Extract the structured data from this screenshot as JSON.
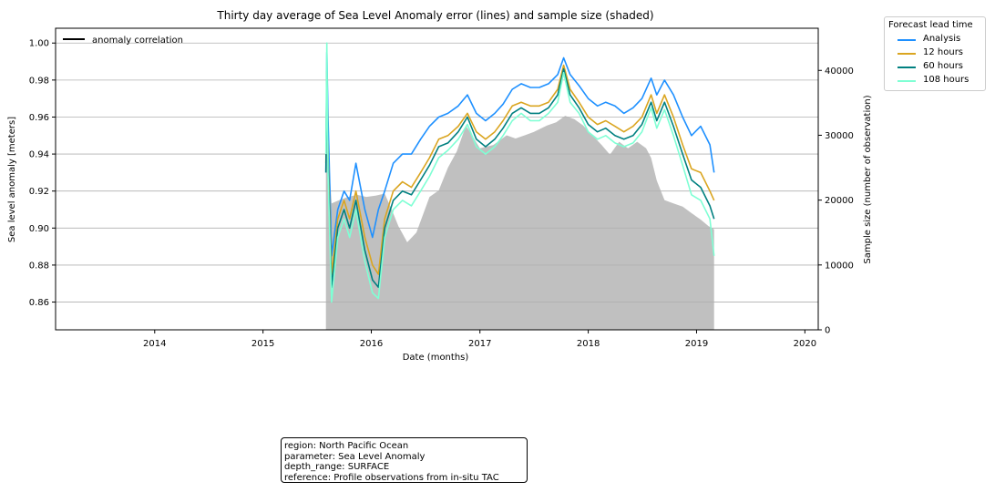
{
  "chart_data": {
    "type": "line",
    "title": "Thirty day average of Sea Level Anomaly error (lines) and sample size (shaded)",
    "xlabel": "Date (months)",
    "ylabel": "Sea level anomaly [meters]",
    "y2label": "Sample size (number of observation)",
    "xlim": [
      "2013-02-01",
      "2020-02-15"
    ],
    "ylim": [
      0.845,
      1.008
    ],
    "y2lim": [
      0,
      46500
    ],
    "x_ticks": [
      "2014",
      "2015",
      "2016",
      "2017",
      "2018",
      "2019",
      "2020"
    ],
    "y_ticks": [
      0.86,
      0.88,
      0.9,
      0.92,
      0.94,
      0.96,
      0.98,
      1.0
    ],
    "y_tick_labels": [
      "0.86",
      "0.88",
      "0.90",
      "0.92",
      "0.94",
      "0.96",
      "0.98",
      "1.00"
    ],
    "y2_ticks": [
      0,
      10000,
      20000,
      30000,
      40000
    ],
    "y2_tick_labels": [
      "0",
      "10000",
      "20000",
      "30000",
      "40000"
    ],
    "grid": "horizontal",
    "inner_legend": {
      "label": "anomaly correlation",
      "color": "#000000",
      "placement": "top-left"
    },
    "legend": {
      "title": "Forecast lead time",
      "placement": "outside-top-right"
    },
    "sample_size": {
      "color": "#c0c0c0",
      "points": [
        [
          "2015-08-01",
          24000
        ],
        [
          "2015-08-05",
          44500
        ],
        [
          "2015-08-10",
          27000
        ],
        [
          "2015-08-20",
          19500
        ],
        [
          "2015-09-15",
          20000
        ],
        [
          "2015-10-15",
          20500
        ],
        [
          "2015-11-15",
          20800
        ],
        [
          "2015-12-15",
          20500
        ],
        [
          "2016-01-15",
          20700
        ],
        [
          "2016-02-15",
          21000
        ],
        [
          "2016-03-10",
          18500
        ],
        [
          "2016-04-01",
          16000
        ],
        [
          "2016-05-01",
          13500
        ],
        [
          "2016-06-01",
          15000
        ],
        [
          "2016-07-15",
          20500
        ],
        [
          "2016-08-15",
          21500
        ],
        [
          "2016-09-15",
          25000
        ],
        [
          "2016-10-15",
          27500
        ],
        [
          "2016-11-15",
          31500
        ],
        [
          "2017-01-01",
          28000
        ],
        [
          "2017-02-15",
          28500
        ],
        [
          "2017-04-01",
          30000
        ],
        [
          "2017-05-01",
          29500
        ],
        [
          "2017-06-01",
          30000
        ],
        [
          "2017-07-01",
          30500
        ],
        [
          "2017-08-15",
          31500
        ],
        [
          "2017-09-15",
          32000
        ],
        [
          "2017-10-15",
          33000
        ],
        [
          "2017-11-15",
          32500
        ],
        [
          "2017-12-15",
          31500
        ],
        [
          "2018-01-15",
          30000
        ],
        [
          "2018-02-15",
          28500
        ],
        [
          "2018-03-15",
          27000
        ],
        [
          "2018-04-15",
          29000
        ],
        [
          "2018-05-15",
          28000
        ],
        [
          "2018-06-15",
          29000
        ],
        [
          "2018-07-15",
          28000
        ],
        [
          "2018-08-01",
          26500
        ],
        [
          "2018-08-20",
          23000
        ],
        [
          "2018-09-15",
          20000
        ],
        [
          "2018-10-15",
          19500
        ],
        [
          "2018-11-15",
          19000
        ],
        [
          "2018-12-15",
          18000
        ],
        [
          "2019-01-15",
          17000
        ],
        [
          "2019-02-10",
          16000
        ],
        [
          "2019-03-01",
          15500
        ]
      ]
    },
    "series": [
      {
        "name": "Analysis",
        "color": "#1e90ff",
        "points": [
          [
            "2015-08-01",
            0.93
          ],
          [
            "2015-08-04",
            0.995
          ],
          [
            "2015-08-08",
            0.96
          ],
          [
            "2015-08-20",
            0.885
          ],
          [
            "2015-09-10",
            0.91
          ],
          [
            "2015-10-01",
            0.92
          ],
          [
            "2015-10-20",
            0.915
          ],
          [
            "2015-11-10",
            0.935
          ],
          [
            "2015-12-10",
            0.91
          ],
          [
            "2016-01-05",
            0.895
          ],
          [
            "2016-01-25",
            0.91
          ],
          [
            "2016-02-15",
            0.92
          ],
          [
            "2016-03-15",
            0.935
          ],
          [
            "2016-04-15",
            0.94
          ],
          [
            "2016-05-15",
            0.94
          ],
          [
            "2016-06-15",
            0.948
          ],
          [
            "2016-07-15",
            0.955
          ],
          [
            "2016-08-15",
            0.96
          ],
          [
            "2016-09-15",
            0.962
          ],
          [
            "2016-10-20",
            0.966
          ],
          [
            "2016-11-20",
            0.972
          ],
          [
            "2016-12-20",
            0.962
          ],
          [
            "2017-01-20",
            0.958
          ],
          [
            "2017-02-20",
            0.962
          ],
          [
            "2017-03-20",
            0.967
          ],
          [
            "2017-04-20",
            0.975
          ],
          [
            "2017-05-20",
            0.978
          ],
          [
            "2017-06-20",
            0.976
          ],
          [
            "2017-07-20",
            0.976
          ],
          [
            "2017-08-20",
            0.978
          ],
          [
            "2017-09-20",
            0.983
          ],
          [
            "2017-10-10",
            0.992
          ],
          [
            "2017-11-01",
            0.983
          ],
          [
            "2017-12-01",
            0.977
          ],
          [
            "2018-01-01",
            0.97
          ],
          [
            "2018-02-01",
            0.966
          ],
          [
            "2018-03-01",
            0.968
          ],
          [
            "2018-04-01",
            0.966
          ],
          [
            "2018-05-01",
            0.962
          ],
          [
            "2018-06-01",
            0.965
          ],
          [
            "2018-07-01",
            0.97
          ],
          [
            "2018-08-01",
            0.981
          ],
          [
            "2018-08-20",
            0.972
          ],
          [
            "2018-09-15",
            0.98
          ],
          [
            "2018-10-15",
            0.972
          ],
          [
            "2018-11-15",
            0.96
          ],
          [
            "2018-12-15",
            0.95
          ],
          [
            "2019-01-15",
            0.955
          ],
          [
            "2019-02-15",
            0.945
          ],
          [
            "2019-03-01",
            0.93
          ]
        ]
      },
      {
        "name": "12 hours",
        "color": "#daa520",
        "points": [
          [
            "2015-08-01",
            0.935
          ],
          [
            "2015-08-04",
            0.985
          ],
          [
            "2015-08-08",
            0.94
          ],
          [
            "2015-08-20",
            0.875
          ],
          [
            "2015-09-10",
            0.905
          ],
          [
            "2015-10-01",
            0.915
          ],
          [
            "2015-10-20",
            0.905
          ],
          [
            "2015-11-10",
            0.92
          ],
          [
            "2015-12-10",
            0.895
          ],
          [
            "2016-01-05",
            0.88
          ],
          [
            "2016-01-25",
            0.875
          ],
          [
            "2016-02-15",
            0.905
          ],
          [
            "2016-03-15",
            0.92
          ],
          [
            "2016-04-15",
            0.925
          ],
          [
            "2016-05-15",
            0.922
          ],
          [
            "2016-06-15",
            0.93
          ],
          [
            "2016-07-15",
            0.938
          ],
          [
            "2016-08-15",
            0.948
          ],
          [
            "2016-09-15",
            0.95
          ],
          [
            "2016-10-20",
            0.955
          ],
          [
            "2016-11-20",
            0.962
          ],
          [
            "2016-12-20",
            0.952
          ],
          [
            "2017-01-20",
            0.948
          ],
          [
            "2017-02-20",
            0.952
          ],
          [
            "2017-03-20",
            0.958
          ],
          [
            "2017-04-20",
            0.966
          ],
          [
            "2017-05-20",
            0.968
          ],
          [
            "2017-06-20",
            0.966
          ],
          [
            "2017-07-20",
            0.966
          ],
          [
            "2017-08-20",
            0.968
          ],
          [
            "2017-09-20",
            0.975
          ],
          [
            "2017-10-10",
            0.988
          ],
          [
            "2017-11-01",
            0.975
          ],
          [
            "2017-12-01",
            0.968
          ],
          [
            "2018-01-01",
            0.96
          ],
          [
            "2018-02-01",
            0.956
          ],
          [
            "2018-03-01",
            0.958
          ],
          [
            "2018-04-01",
            0.955
          ],
          [
            "2018-05-01",
            0.952
          ],
          [
            "2018-06-01",
            0.955
          ],
          [
            "2018-07-01",
            0.96
          ],
          [
            "2018-08-01",
            0.972
          ],
          [
            "2018-08-20",
            0.962
          ],
          [
            "2018-09-15",
            0.972
          ],
          [
            "2018-10-15",
            0.96
          ],
          [
            "2018-11-15",
            0.945
          ],
          [
            "2018-12-15",
            0.932
          ],
          [
            "2019-01-15",
            0.93
          ],
          [
            "2019-02-15",
            0.92
          ],
          [
            "2019-03-01",
            0.915
          ]
        ]
      },
      {
        "name": "60 hours",
        "color": "#008080",
        "points": [
          [
            "2015-08-01",
            0.93
          ],
          [
            "2015-08-04",
            0.985
          ],
          [
            "2015-08-08",
            0.935
          ],
          [
            "2015-08-20",
            0.868
          ],
          [
            "2015-09-10",
            0.9
          ],
          [
            "2015-10-01",
            0.91
          ],
          [
            "2015-10-20",
            0.9
          ],
          [
            "2015-11-10",
            0.915
          ],
          [
            "2015-12-10",
            0.888
          ],
          [
            "2016-01-05",
            0.872
          ],
          [
            "2016-01-25",
            0.868
          ],
          [
            "2016-02-15",
            0.9
          ],
          [
            "2016-03-15",
            0.915
          ],
          [
            "2016-04-15",
            0.92
          ],
          [
            "2016-05-15",
            0.918
          ],
          [
            "2016-06-15",
            0.926
          ],
          [
            "2016-07-15",
            0.934
          ],
          [
            "2016-08-15",
            0.944
          ],
          [
            "2016-09-15",
            0.946
          ],
          [
            "2016-10-20",
            0.952
          ],
          [
            "2016-11-20",
            0.96
          ],
          [
            "2016-12-20",
            0.948
          ],
          [
            "2017-01-20",
            0.944
          ],
          [
            "2017-02-20",
            0.948
          ],
          [
            "2017-03-20",
            0.954
          ],
          [
            "2017-04-20",
            0.962
          ],
          [
            "2017-05-20",
            0.965
          ],
          [
            "2017-06-20",
            0.962
          ],
          [
            "2017-07-20",
            0.962
          ],
          [
            "2017-08-20",
            0.965
          ],
          [
            "2017-09-20",
            0.972
          ],
          [
            "2017-10-10",
            0.986
          ],
          [
            "2017-11-01",
            0.972
          ],
          [
            "2017-12-01",
            0.965
          ],
          [
            "2018-01-01",
            0.956
          ],
          [
            "2018-02-01",
            0.952
          ],
          [
            "2018-03-01",
            0.954
          ],
          [
            "2018-04-01",
            0.95
          ],
          [
            "2018-05-01",
            0.948
          ],
          [
            "2018-06-01",
            0.95
          ],
          [
            "2018-07-01",
            0.956
          ],
          [
            "2018-08-01",
            0.968
          ],
          [
            "2018-08-20",
            0.958
          ],
          [
            "2018-09-15",
            0.968
          ],
          [
            "2018-10-15",
            0.955
          ],
          [
            "2018-11-15",
            0.94
          ],
          [
            "2018-12-15",
            0.926
          ],
          [
            "2019-01-15",
            0.922
          ],
          [
            "2019-02-15",
            0.912
          ],
          [
            "2019-03-01",
            0.905
          ]
        ]
      },
      {
        "name": "108 hours",
        "color": "#7fffd4",
        "points": [
          [
            "2015-08-01",
            0.94
          ],
          [
            "2015-08-04",
            1.0
          ],
          [
            "2015-08-08",
            0.93
          ],
          [
            "2015-08-20",
            0.86
          ],
          [
            "2015-09-10",
            0.895
          ],
          [
            "2015-10-01",
            0.905
          ],
          [
            "2015-10-20",
            0.895
          ],
          [
            "2015-11-10",
            0.91
          ],
          [
            "2015-12-10",
            0.882
          ],
          [
            "2016-01-05",
            0.865
          ],
          [
            "2016-01-25",
            0.862
          ],
          [
            "2016-02-15",
            0.895
          ],
          [
            "2016-03-15",
            0.91
          ],
          [
            "2016-04-15",
            0.915
          ],
          [
            "2016-05-15",
            0.912
          ],
          [
            "2016-06-15",
            0.92
          ],
          [
            "2016-07-15",
            0.928
          ],
          [
            "2016-08-15",
            0.938
          ],
          [
            "2016-09-15",
            0.942
          ],
          [
            "2016-10-20",
            0.948
          ],
          [
            "2016-11-20",
            0.956
          ],
          [
            "2016-12-20",
            0.944
          ],
          [
            "2017-01-20",
            0.94
          ],
          [
            "2017-02-20",
            0.944
          ],
          [
            "2017-03-20",
            0.95
          ],
          [
            "2017-04-20",
            0.958
          ],
          [
            "2017-05-20",
            0.962
          ],
          [
            "2017-06-20",
            0.958
          ],
          [
            "2017-07-20",
            0.958
          ],
          [
            "2017-08-20",
            0.962
          ],
          [
            "2017-09-20",
            0.968
          ],
          [
            "2017-10-10",
            0.984
          ],
          [
            "2017-11-01",
            0.968
          ],
          [
            "2017-12-01",
            0.962
          ],
          [
            "2018-01-01",
            0.952
          ],
          [
            "2018-02-01",
            0.948
          ],
          [
            "2018-03-01",
            0.95
          ],
          [
            "2018-04-01",
            0.946
          ],
          [
            "2018-05-01",
            0.944
          ],
          [
            "2018-06-01",
            0.946
          ],
          [
            "2018-07-01",
            0.952
          ],
          [
            "2018-08-01",
            0.965
          ],
          [
            "2018-08-20",
            0.954
          ],
          [
            "2018-09-15",
            0.964
          ],
          [
            "2018-10-15",
            0.95
          ],
          [
            "2018-11-15",
            0.934
          ],
          [
            "2018-12-15",
            0.918
          ],
          [
            "2019-01-15",
            0.915
          ],
          [
            "2019-02-15",
            0.905
          ],
          [
            "2019-03-01",
            0.885
          ]
        ]
      }
    ]
  },
  "legend": {
    "title": "Forecast lead time",
    "items": [
      {
        "label": "Analysis",
        "color": "#1e90ff"
      },
      {
        "label": "12 hours",
        "color": "#daa520"
      },
      {
        "label": "60 hours",
        "color": "#008080"
      },
      {
        "label": "108 hours",
        "color": "#7fffd4"
      }
    ]
  },
  "info_box": {
    "lines": [
      "region: North Pacific Ocean",
      "parameter: Sea Level Anomaly",
      "depth_range: SURFACE",
      "reference: Profile observations from in-situ TAC"
    ]
  }
}
